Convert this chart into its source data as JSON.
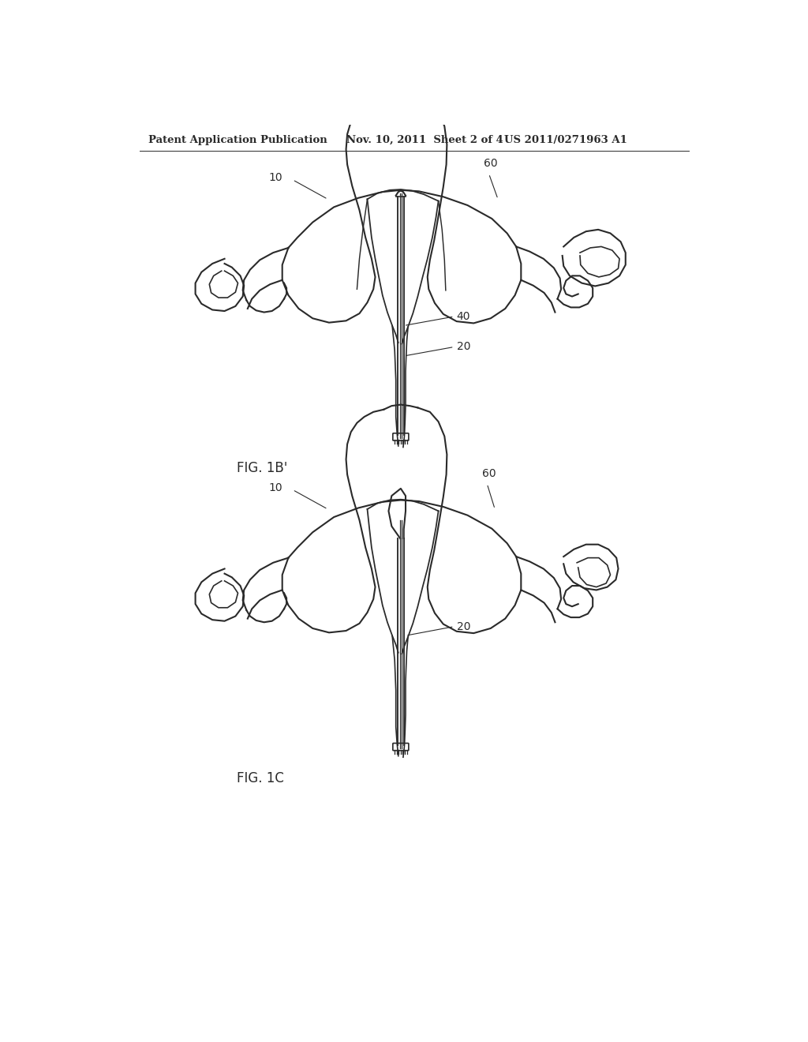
{
  "bg_color": "#ffffff",
  "line_color": "#2a2a2a",
  "header_text": "Patent Application Publication",
  "header_date": "Nov. 10, 2011  Sheet 2 of 4",
  "header_patent": "US 2011/0271963 A1",
  "fig1b_label": "FIG. 1B'",
  "fig1c_label": "FIG. 1C",
  "lw": 1.5,
  "font_size_header": 9.5,
  "font_size_labels": 10,
  "font_size_fig": 12
}
